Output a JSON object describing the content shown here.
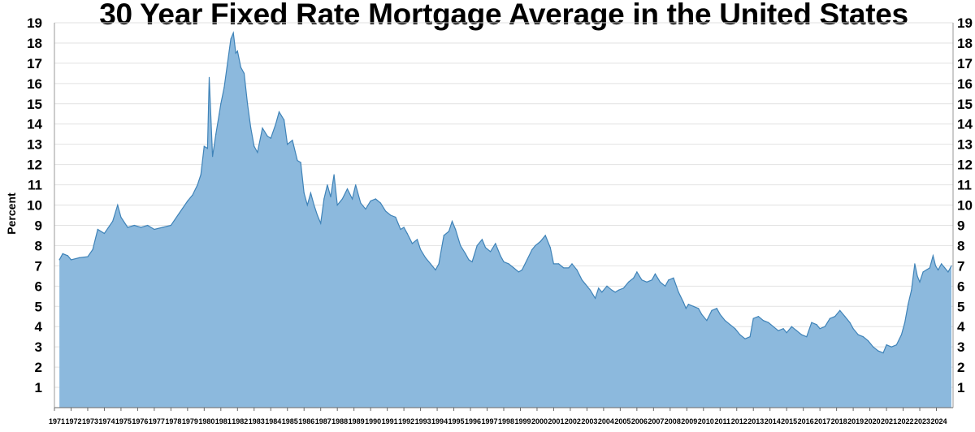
{
  "chart_data": {
    "type": "area",
    "title": "30 Year Fixed Rate Mortgage Average in the United States",
    "ylabel": "Percent",
    "xlabel": "",
    "ylim": [
      0,
      19
    ],
    "y_ticks": [
      "1",
      "2",
      "3",
      "4",
      "5",
      "6",
      "7",
      "8",
      "9",
      "10",
      "11",
      "12",
      "13",
      "14",
      "15",
      "16",
      "17",
      "18",
      "19"
    ],
    "x_ticks": [
      "1971",
      "1972",
      "1973",
      "1974",
      "1975",
      "1976",
      "1977",
      "1978",
      "1979",
      "1980",
      "1981",
      "1982",
      "1983",
      "1984",
      "1985",
      "1986",
      "1987",
      "1988",
      "1989",
      "1990",
      "1991",
      "1992",
      "1993",
      "1994",
      "1995",
      "1996",
      "1997",
      "1998",
      "1999",
      "2000",
      "2001",
      "2002",
      "2003",
      "2004",
      "2005",
      "2006",
      "2007",
      "2008",
      "2009",
      "2010",
      "2011",
      "2012",
      "2013",
      "2014",
      "2015",
      "2016",
      "2017",
      "2018",
      "2019",
      "2020",
      "2021",
      "2022",
      "2023",
      "2024"
    ],
    "grid": true,
    "y_axis_both_sides": true,
    "series": [
      {
        "color": "#8cb9dd",
        "line_color": "#3f83b8",
        "x": [
          1971.3,
          1971.5,
          1971.8,
          1972.0,
          1972.5,
          1973.0,
          1973.3,
          1973.6,
          1974.0,
          1974.5,
          1974.8,
          1975.0,
          1975.4,
          1975.8,
          1976.2,
          1976.6,
          1977.0,
          1977.5,
          1978.0,
          1978.5,
          1979.0,
          1979.3,
          1979.6,
          1979.8,
          1980.0,
          1980.2,
          1980.3,
          1980.5,
          1980.7,
          1980.9,
          1981.0,
          1981.2,
          1981.4,
          1981.6,
          1981.75,
          1981.9,
          1982.0,
          1982.2,
          1982.4,
          1982.6,
          1982.8,
          1983.0,
          1983.2,
          1983.5,
          1983.8,
          1984.0,
          1984.3,
          1984.5,
          1984.8,
          1985.0,
          1985.3,
          1985.6,
          1985.8,
          1986.0,
          1986.2,
          1986.4,
          1986.6,
          1986.8,
          1987.0,
          1987.2,
          1987.4,
          1987.6,
          1987.8,
          1988.0,
          1988.3,
          1988.6,
          1988.9,
          1989.1,
          1989.4,
          1989.7,
          1990.0,
          1990.3,
          1990.6,
          1990.9,
          1991.2,
          1991.5,
          1991.8,
          1992.0,
          1992.2,
          1992.5,
          1992.8,
          1993.0,
          1993.3,
          1993.6,
          1993.9,
          1994.1,
          1994.4,
          1994.7,
          1994.9,
          1995.1,
          1995.4,
          1995.7,
          1995.9,
          1996.1,
          1996.4,
          1996.7,
          1996.9,
          1997.2,
          1997.5,
          1997.8,
          1998.0,
          1998.3,
          1998.6,
          1998.9,
          1999.1,
          1999.4,
          1999.7,
          1999.9,
          2000.2,
          2000.5,
          2000.8,
          2001.0,
          2001.3,
          2001.6,
          2001.9,
          2002.1,
          2002.4,
          2002.7,
          2002.9,
          2003.2,
          2003.5,
          2003.7,
          2003.9,
          2004.2,
          2004.5,
          2004.7,
          2004.9,
          2005.2,
          2005.5,
          2005.8,
          2006.0,
          2006.3,
          2006.6,
          2006.9,
          2007.1,
          2007.4,
          2007.7,
          2007.9,
          2008.2,
          2008.5,
          2008.8,
          2008.95,
          2009.1,
          2009.4,
          2009.7,
          2009.9,
          2010.2,
          2010.5,
          2010.8,
          2011.0,
          2011.3,
          2011.6,
          2011.9,
          2012.2,
          2012.5,
          2012.8,
          2013.0,
          2013.3,
          2013.6,
          2013.9,
          2014.2,
          2014.5,
          2014.8,
          2015.0,
          2015.3,
          2015.6,
          2015.9,
          2016.2,
          2016.5,
          2016.8,
          2017.0,
          2017.3,
          2017.6,
          2017.9,
          2018.2,
          2018.5,
          2018.8,
          2019.0,
          2019.3,
          2019.6,
          2019.9,
          2020.2,
          2020.5,
          2020.8,
          2021.0,
          2021.3,
          2021.6,
          2021.9,
          2022.1,
          2022.3,
          2022.5,
          2022.7,
          2022.85,
          2023.0,
          2023.2,
          2023.4,
          2023.6,
          2023.8,
          2023.95,
          2024.1,
          2024.3,
          2024.5,
          2024.7,
          2024.9
        ],
        "values": [
          7.3,
          7.6,
          7.5,
          7.3,
          7.4,
          7.45,
          7.8,
          8.8,
          8.6,
          9.2,
          10.0,
          9.4,
          8.9,
          9.0,
          8.9,
          9.0,
          8.8,
          8.9,
          9.0,
          9.6,
          10.2,
          10.5,
          11.0,
          11.5,
          12.9,
          12.8,
          16.3,
          12.4,
          13.5,
          14.5,
          15.0,
          15.8,
          17.0,
          18.2,
          18.5,
          17.5,
          17.6,
          16.8,
          16.5,
          15.0,
          13.8,
          12.9,
          12.6,
          13.8,
          13.4,
          13.3,
          14.0,
          14.6,
          14.2,
          13.0,
          13.2,
          12.2,
          12.1,
          10.6,
          10.0,
          10.6,
          10.0,
          9.5,
          9.1,
          10.3,
          11.0,
          10.4,
          11.5,
          10.0,
          10.3,
          10.8,
          10.3,
          11.0,
          10.1,
          9.8,
          10.2,
          10.3,
          10.1,
          9.7,
          9.5,
          9.4,
          8.8,
          8.9,
          8.6,
          8.1,
          8.3,
          7.8,
          7.4,
          7.1,
          6.8,
          7.1,
          8.5,
          8.7,
          9.2,
          8.8,
          8.0,
          7.6,
          7.3,
          7.2,
          8.0,
          8.3,
          7.9,
          7.7,
          8.1,
          7.5,
          7.2,
          7.1,
          6.9,
          6.7,
          6.8,
          7.3,
          7.8,
          8.0,
          8.2,
          8.5,
          7.9,
          7.1,
          7.1,
          6.9,
          6.9,
          7.1,
          6.8,
          6.3,
          6.1,
          5.8,
          5.4,
          5.9,
          5.7,
          6.0,
          5.8,
          5.7,
          5.8,
          5.9,
          6.2,
          6.4,
          6.7,
          6.3,
          6.2,
          6.3,
          6.6,
          6.2,
          6.0,
          6.3,
          6.4,
          5.7,
          5.2,
          4.9,
          5.1,
          5.0,
          4.9,
          4.6,
          4.3,
          4.8,
          4.9,
          4.6,
          4.3,
          4.1,
          3.9,
          3.6,
          3.4,
          3.5,
          4.4,
          4.5,
          4.3,
          4.2,
          4.0,
          3.8,
          3.9,
          3.7,
          4.0,
          3.8,
          3.6,
          3.5,
          4.2,
          4.1,
          3.9,
          4.0,
          4.4,
          4.5,
          4.8,
          4.5,
          4.2,
          3.9,
          3.6,
          3.5,
          3.3,
          3.0,
          2.8,
          2.7,
          3.1,
          3.0,
          3.1,
          3.6,
          4.2,
          5.1,
          5.8,
          7.1,
          6.5,
          6.2,
          6.7,
          6.8,
          6.9,
          7.5,
          7.0,
          6.8,
          7.1,
          6.9,
          6.7,
          7.0
        ]
      }
    ]
  }
}
